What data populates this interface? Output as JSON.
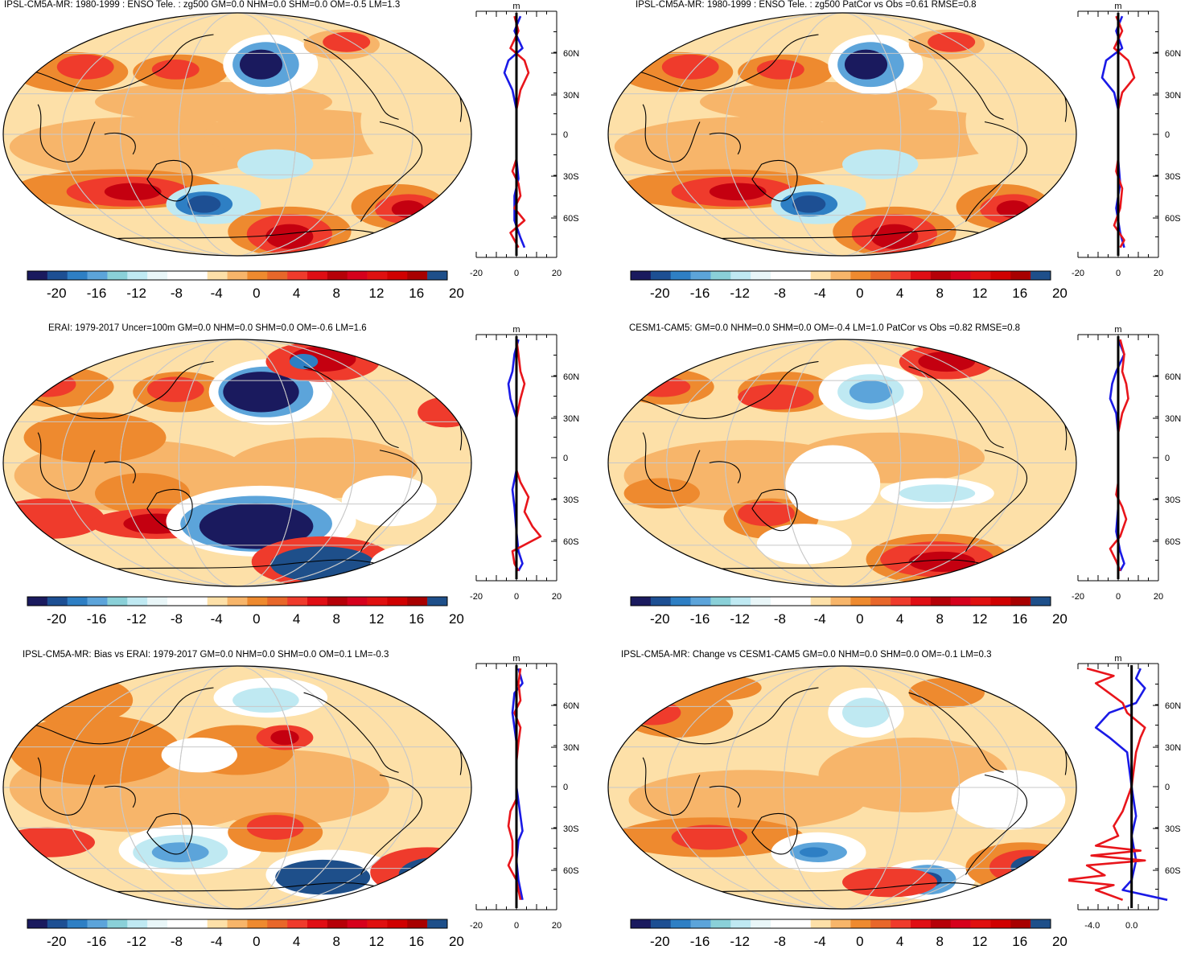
{
  "colorbar": {
    "colors": [
      "#1a1a5e",
      "#1d4f93",
      "#2e7fc4",
      "#5ca4da",
      "#8ad0d8",
      "#bfe9f2",
      "#e9f6f8",
      "#ffffff",
      "#ffffff",
      "#fde0a8",
      "#f7b56a",
      "#ee8a2f",
      "#e8672a",
      "#ef3b2c",
      "#e00e14",
      "#b60008",
      "#d6001c",
      "#e01010",
      "#d00000",
      "#a80000",
      "#1e4f8a"
    ],
    "labels": [
      "-20",
      "-16",
      "-12",
      "-8",
      "-4",
      "0",
      "4",
      "8",
      "12",
      "16",
      "20"
    ]
  },
  "profile": {
    "unit": "m",
    "lat_labels": [
      "60N",
      "30N",
      "0",
      "30S",
      "60S"
    ],
    "colors": {
      "model": "#e8151b",
      "obs": "#1a1ae6",
      "mean": "#000000"
    }
  },
  "panels": [
    {
      "id": "ipsl-cm5a-mr-enso",
      "title": "IPSL-CM5A-MR: 1980-1999 : ENSO Tele. : zg500 GM=0.0 NHM=0.0 SHM=0.0 OM=-0.5 LM=1.3",
      "x_ticks": [
        "-20",
        "0",
        "20"
      ]
    },
    {
      "id": "ipsl-patcor",
      "title": "IPSL-CM5A-MR: 1980-1999 : ENSO Tele. : zg500 PatCor vs Obs =0.61 RMSE=0.8",
      "x_ticks": [
        "-20",
        "0",
        "20"
      ]
    },
    {
      "id": "erai",
      "title": "ERAI: 1979-2017 Uncer=100m GM=0.0 NHM=0.0 SHM=0.0 OM=-0.6 LM=1.6",
      "x_ticks": [
        "-20",
        "0",
        "20"
      ]
    },
    {
      "id": "cesm1-cam5",
      "title": "CESM1-CAM5: GM=0.0 NHM=0.0 SHM=0.0 OM=-0.4 LM=1.0 PatCor vs Obs =0.82 RMSE=0.8",
      "x_ticks": [
        "-20",
        "0",
        "20"
      ]
    },
    {
      "id": "bias-vs-erai",
      "title": "IPSL-CM5A-MR: Bias vs ERAI: 1979-2017 GM=0.0 NHM=0.0 SHM=0.0 OM=0.1 LM=-0.3",
      "x_ticks": [
        "-20",
        "0",
        "20"
      ]
    },
    {
      "id": "change-vs-cesm",
      "title": "IPSL-CM5A-MR: Change vs CESM1-CAM5 GM=0.0 NHM=0.0 SHM=0.0 OM=-0.1 LM=0.3",
      "x_ticks": [
        "-4.0",
        "0.0"
      ]
    }
  ]
}
